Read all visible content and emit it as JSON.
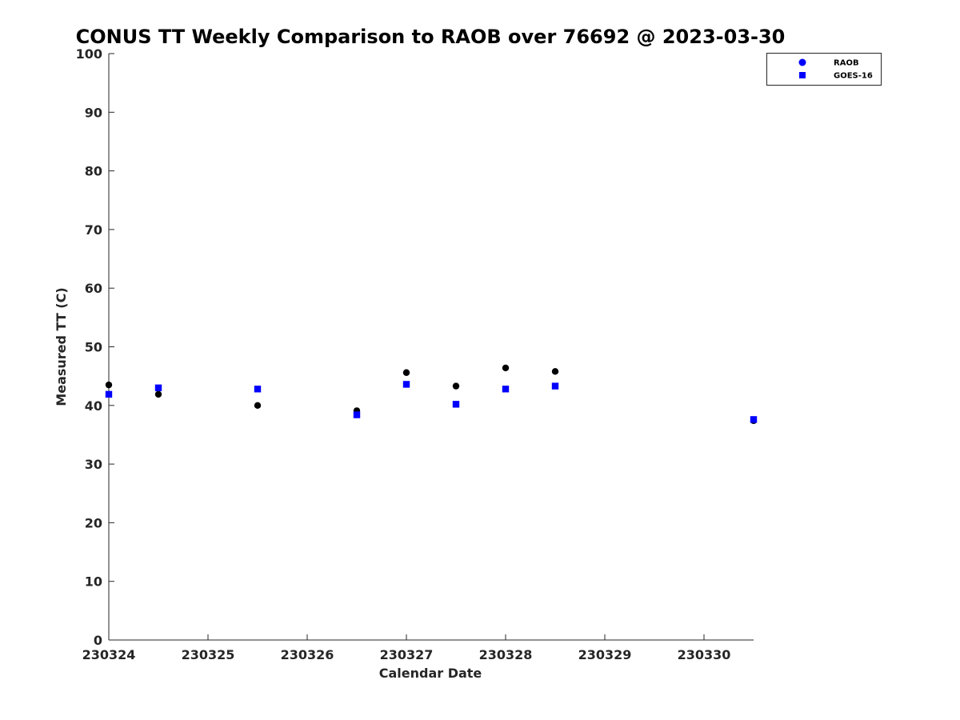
{
  "chart_data": {
    "type": "scatter",
    "title": "CONUS TT Weekly Comparison to RAOB over 76692 @ 2023-03-30",
    "xlabel": "Calendar Date",
    "ylabel": "Measured TT (C)",
    "xlim": [
      230324,
      230330.5
    ],
    "ylim": [
      0,
      100
    ],
    "x_ticks": [
      230324,
      230325,
      230326,
      230327,
      230328,
      230329,
      230330
    ],
    "x_tick_labels": [
      "230324",
      "230325",
      "230326",
      "230327",
      "230328",
      "230329",
      "230330"
    ],
    "y_ticks": [
      0,
      10,
      20,
      30,
      40,
      50,
      60,
      70,
      80,
      90,
      100
    ],
    "y_tick_labels": [
      "0",
      "10",
      "20",
      "30",
      "40",
      "50",
      "60",
      "70",
      "80",
      "90",
      "100"
    ],
    "grid": false,
    "legend_position": "top-right",
    "series": [
      {
        "name": "RAOB",
        "marker": "circle",
        "color": "#000000",
        "legend_color": "#0000ff",
        "points": [
          {
            "x": 230324.0,
            "y": 43.5
          },
          {
            "x": 230324.5,
            "y": 41.9
          },
          {
            "x": 230325.5,
            "y": 40.0
          },
          {
            "x": 230326.5,
            "y": 39.1
          },
          {
            "x": 230327.0,
            "y": 45.6
          },
          {
            "x": 230327.5,
            "y": 43.3
          },
          {
            "x": 230328.0,
            "y": 46.4
          },
          {
            "x": 230328.5,
            "y": 45.8
          },
          {
            "x": 230330.5,
            "y": 37.4
          }
        ]
      },
      {
        "name": "GOES-16",
        "marker": "square",
        "color": "#0000ff",
        "legend_color": "#0000ff",
        "points": [
          {
            "x": 230324.0,
            "y": 41.9
          },
          {
            "x": 230324.5,
            "y": 43.0
          },
          {
            "x": 230325.5,
            "y": 42.8
          },
          {
            "x": 230326.5,
            "y": 38.4
          },
          {
            "x": 230327.0,
            "y": 43.6
          },
          {
            "x": 230327.5,
            "y": 40.2
          },
          {
            "x": 230328.0,
            "y": 42.8
          },
          {
            "x": 230328.5,
            "y": 43.3
          },
          {
            "x": 230330.5,
            "y": 37.6
          }
        ]
      }
    ]
  }
}
